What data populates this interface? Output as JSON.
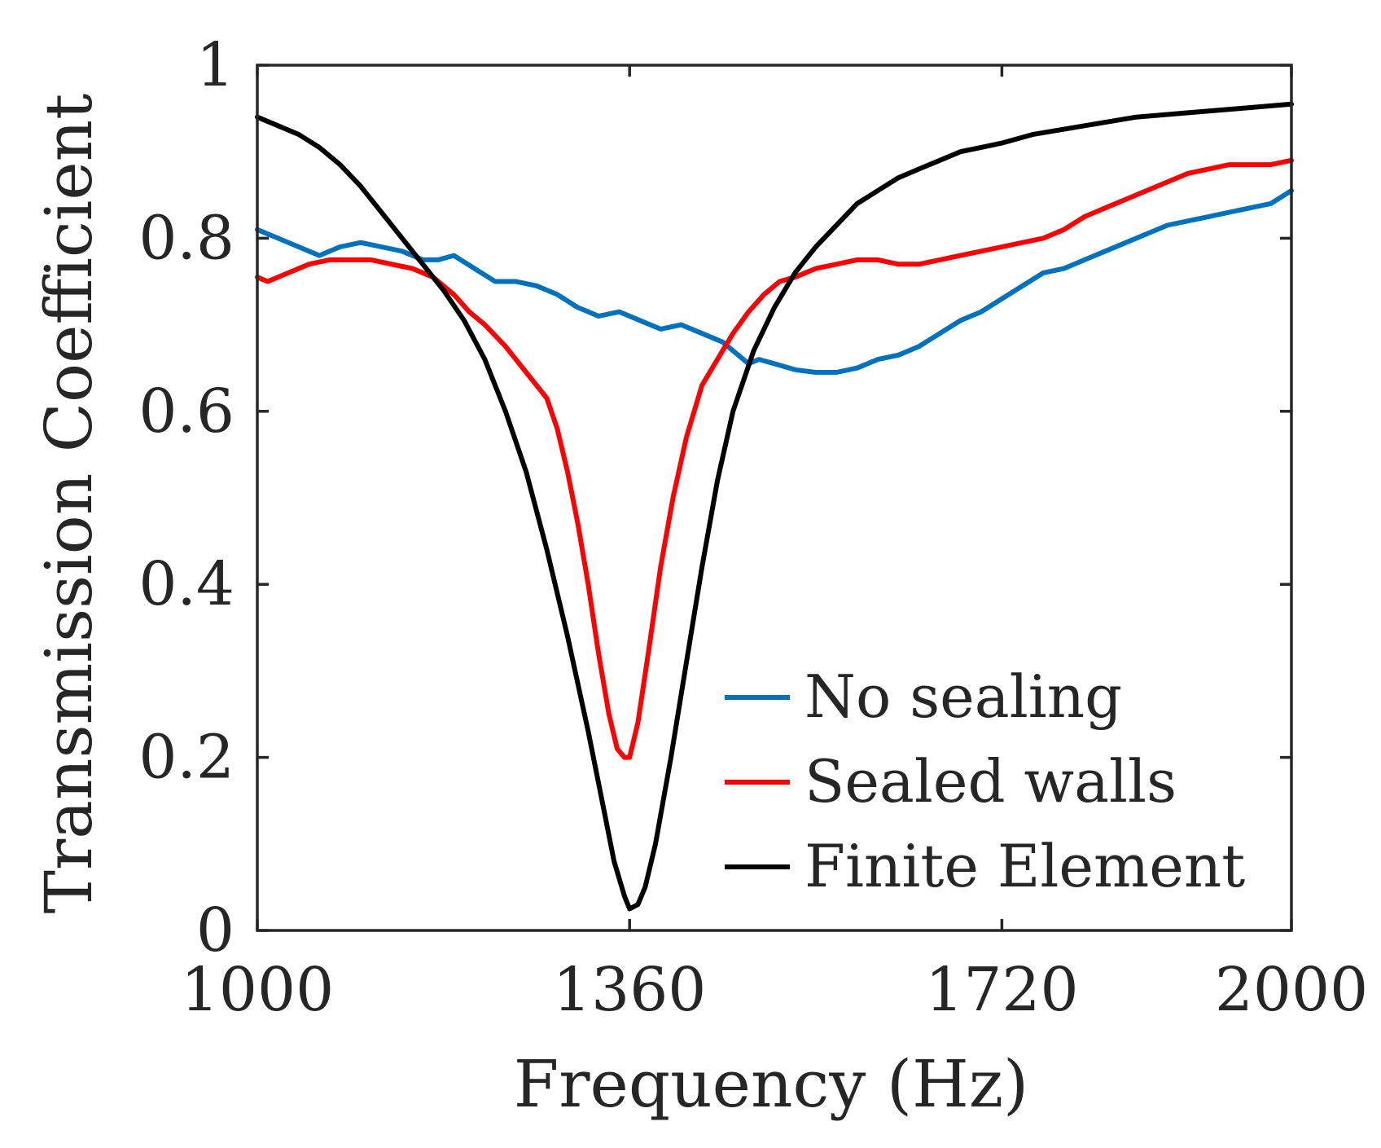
{
  "chart_data": {
    "type": "line",
    "title": "",
    "xlabel": "Frequency (Hz)",
    "ylabel": "Transmission Coefficient",
    "xlim": [
      1000,
      2000
    ],
    "ylim": [
      0,
      1
    ],
    "xticks": [
      1000,
      1360,
      1720,
      2000
    ],
    "xtick_labels": [
      "1000",
      "1360",
      "1720",
      "2000"
    ],
    "yticks": [
      0,
      0.2,
      0.4,
      0.6,
      0.8,
      1
    ],
    "ytick_labels": [
      "0",
      "0.2",
      "0.4",
      "0.6",
      "0.8",
      "1"
    ],
    "grid": false,
    "legend_position": "bottom-right",
    "series": [
      {
        "name": "No sealing",
        "color": "#0072BD",
        "points": [
          [
            1000,
            0.81
          ],
          [
            1020,
            0.8
          ],
          [
            1040,
            0.79
          ],
          [
            1060,
            0.78
          ],
          [
            1080,
            0.79
          ],
          [
            1100,
            0.795
          ],
          [
            1120,
            0.79
          ],
          [
            1140,
            0.785
          ],
          [
            1160,
            0.775
          ],
          [
            1175,
            0.775
          ],
          [
            1190,
            0.78
          ],
          [
            1210,
            0.765
          ],
          [
            1230,
            0.75
          ],
          [
            1250,
            0.75
          ],
          [
            1270,
            0.745
          ],
          [
            1290,
            0.735
          ],
          [
            1310,
            0.72
          ],
          [
            1330,
            0.71
          ],
          [
            1350,
            0.715
          ],
          [
            1370,
            0.705
          ],
          [
            1390,
            0.695
          ],
          [
            1410,
            0.7
          ],
          [
            1430,
            0.69
          ],
          [
            1450,
            0.68
          ],
          [
            1465,
            0.665
          ],
          [
            1475,
            0.655
          ],
          [
            1485,
            0.66
          ],
          [
            1500,
            0.655
          ],
          [
            1520,
            0.648
          ],
          [
            1540,
            0.645
          ],
          [
            1560,
            0.645
          ],
          [
            1580,
            0.65
          ],
          [
            1600,
            0.66
          ],
          [
            1620,
            0.665
          ],
          [
            1640,
            0.675
          ],
          [
            1660,
            0.69
          ],
          [
            1680,
            0.705
          ],
          [
            1700,
            0.715
          ],
          [
            1720,
            0.73
          ],
          [
            1740,
            0.745
          ],
          [
            1760,
            0.76
          ],
          [
            1780,
            0.765
          ],
          [
            1800,
            0.775
          ],
          [
            1820,
            0.785
          ],
          [
            1840,
            0.795
          ],
          [
            1860,
            0.805
          ],
          [
            1880,
            0.815
          ],
          [
            1900,
            0.82
          ],
          [
            1920,
            0.825
          ],
          [
            1940,
            0.83
          ],
          [
            1960,
            0.835
          ],
          [
            1980,
            0.84
          ],
          [
            2000,
            0.855
          ]
        ]
      },
      {
        "name": "Sealed walls",
        "color": "#FF0000",
        "points": [
          [
            1000,
            0.755
          ],
          [
            1010,
            0.75
          ],
          [
            1030,
            0.76
          ],
          [
            1050,
            0.77
          ],
          [
            1070,
            0.775
          ],
          [
            1090,
            0.775
          ],
          [
            1110,
            0.775
          ],
          [
            1130,
            0.77
          ],
          [
            1150,
            0.765
          ],
          [
            1170,
            0.755
          ],
          [
            1190,
            0.735
          ],
          [
            1205,
            0.715
          ],
          [
            1220,
            0.7
          ],
          [
            1240,
            0.675
          ],
          [
            1260,
            0.645
          ],
          [
            1270,
            0.63
          ],
          [
            1280,
            0.615
          ],
          [
            1290,
            0.58
          ],
          [
            1300,
            0.53
          ],
          [
            1310,
            0.47
          ],
          [
            1320,
            0.4
          ],
          [
            1330,
            0.32
          ],
          [
            1340,
            0.25
          ],
          [
            1348,
            0.21
          ],
          [
            1355,
            0.2
          ],
          [
            1360,
            0.2
          ],
          [
            1368,
            0.24
          ],
          [
            1378,
            0.32
          ],
          [
            1390,
            0.42
          ],
          [
            1402,
            0.5
          ],
          [
            1415,
            0.57
          ],
          [
            1430,
            0.63
          ],
          [
            1445,
            0.66
          ],
          [
            1460,
            0.69
          ],
          [
            1475,
            0.715
          ],
          [
            1490,
            0.735
          ],
          [
            1505,
            0.75
          ],
          [
            1520,
            0.755
          ],
          [
            1540,
            0.765
          ],
          [
            1560,
            0.77
          ],
          [
            1580,
            0.775
          ],
          [
            1600,
            0.775
          ],
          [
            1620,
            0.77
          ],
          [
            1640,
            0.77
          ],
          [
            1660,
            0.775
          ],
          [
            1680,
            0.78
          ],
          [
            1700,
            0.785
          ],
          [
            1720,
            0.79
          ],
          [
            1740,
            0.795
          ],
          [
            1760,
            0.8
          ],
          [
            1780,
            0.81
          ],
          [
            1800,
            0.825
          ],
          [
            1820,
            0.835
          ],
          [
            1840,
            0.845
          ],
          [
            1860,
            0.855
          ],
          [
            1880,
            0.865
          ],
          [
            1900,
            0.875
          ],
          [
            1920,
            0.88
          ],
          [
            1940,
            0.885
          ],
          [
            1960,
            0.885
          ],
          [
            1980,
            0.885
          ],
          [
            2000,
            0.89
          ]
        ]
      },
      {
        "name": "Finite Element",
        "color": "#000000",
        "points": [
          [
            1000,
            0.94
          ],
          [
            1020,
            0.93
          ],
          [
            1040,
            0.92
          ],
          [
            1060,
            0.905
          ],
          [
            1080,
            0.885
          ],
          [
            1100,
            0.86
          ],
          [
            1120,
            0.83
          ],
          [
            1140,
            0.8
          ],
          [
            1160,
            0.77
          ],
          [
            1180,
            0.74
          ],
          [
            1200,
            0.705
          ],
          [
            1220,
            0.66
          ],
          [
            1240,
            0.6
          ],
          [
            1260,
            0.53
          ],
          [
            1280,
            0.44
          ],
          [
            1300,
            0.34
          ],
          [
            1320,
            0.23
          ],
          [
            1335,
            0.14
          ],
          [
            1345,
            0.08
          ],
          [
            1355,
            0.04
          ],
          [
            1360,
            0.025
          ],
          [
            1368,
            0.03
          ],
          [
            1375,
            0.05
          ],
          [
            1385,
            0.1
          ],
          [
            1400,
            0.2
          ],
          [
            1415,
            0.31
          ],
          [
            1430,
            0.42
          ],
          [
            1445,
            0.52
          ],
          [
            1460,
            0.6
          ],
          [
            1480,
            0.67
          ],
          [
            1500,
            0.72
          ],
          [
            1520,
            0.76
          ],
          [
            1540,
            0.79
          ],
          [
            1560,
            0.815
          ],
          [
            1580,
            0.84
          ],
          [
            1600,
            0.855
          ],
          [
            1620,
            0.87
          ],
          [
            1640,
            0.88
          ],
          [
            1660,
            0.89
          ],
          [
            1680,
            0.9
          ],
          [
            1700,
            0.905
          ],
          [
            1720,
            0.91
          ],
          [
            1750,
            0.92
          ],
          [
            1800,
            0.93
          ],
          [
            1850,
            0.94
          ],
          [
            1900,
            0.945
          ],
          [
            1950,
            0.95
          ],
          [
            2000,
            0.955
          ]
        ]
      }
    ]
  }
}
